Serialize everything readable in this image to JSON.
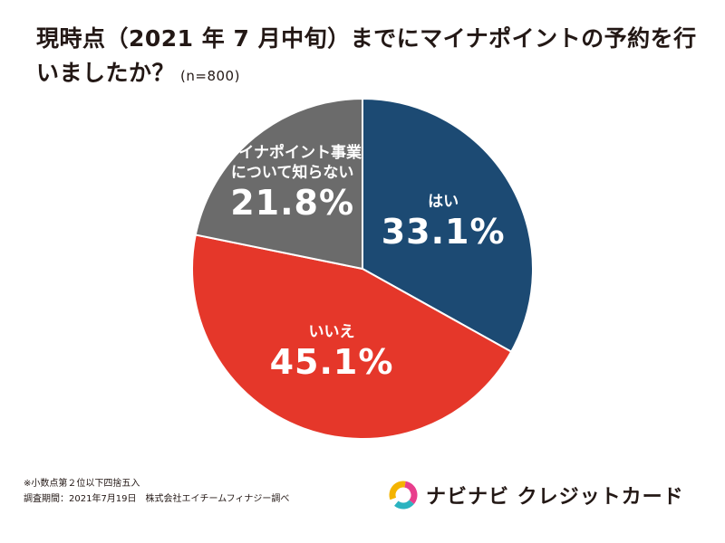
{
  "title": {
    "main": "現時点（2021 年 7 月中旬）までにマイナポイントの予約を行いましたか？",
    "n": "(n=800)"
  },
  "chart_data": {
    "type": "pie",
    "slices": [
      {
        "label": "はい",
        "value": 33.1,
        "display": "33.1%",
        "color": "#1c4a73"
      },
      {
        "label": "いいえ",
        "value": 45.1,
        "display": "45.1%",
        "color": "#e5372a"
      },
      {
        "label": "マイナポイント事業について知らない",
        "label_lines": [
          "マイナポイント事業",
          "について知らない"
        ],
        "value": 21.8,
        "display": "21.8%",
        "color": "#6b6b6b"
      }
    ],
    "start": "12 o'clock",
    "direction": "clockwise"
  },
  "notes": {
    "line1": "※小数点第２位以下四捨五入",
    "line2": "調査期間：2021年7月19日　株式会社エイチームフィナジー調べ"
  },
  "brand": {
    "name": "ナビナビ クレジットカード",
    "colors": [
      "#f4b400",
      "#e83e8c",
      "#2bb3c0"
    ]
  }
}
